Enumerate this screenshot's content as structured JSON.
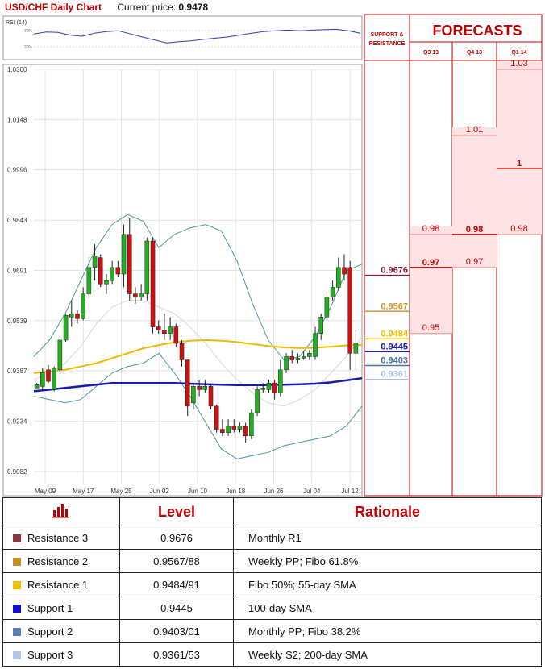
{
  "header": {
    "title": "USD/CHF Daily Chart",
    "price_label": "Current price:",
    "price_value": "0.9478"
  },
  "rsi": {
    "label": "RSI (14)",
    "upper": "70%",
    "lower": "30%",
    "values": [
      58,
      63,
      62,
      55,
      52,
      60,
      64,
      66,
      58,
      50,
      42,
      35,
      38,
      40,
      44,
      47,
      50,
      55,
      60,
      64,
      66,
      68,
      66,
      68,
      69,
      70,
      66,
      60
    ]
  },
  "chart_data": {
    "type": "candlestick",
    "title": "USD/CHF Daily Chart",
    "ylim": [
      0.9082,
      1.03
    ],
    "y_ticks": [
      "1.0300",
      "1.0148",
      "0.9996",
      "0.9843",
      "0.9691",
      "0.9539",
      "0.9387",
      "0.9234",
      "0.9082"
    ],
    "x_ticks": [
      "May 09",
      "May 17",
      "May 25",
      "Jun 02",
      "Jun 10",
      "Jun 18",
      "Jun 26",
      "Jul 04",
      "Jul 12"
    ],
    "candles": [
      [
        0.9335,
        0.9345,
        0.934,
        0.935
      ],
      [
        0.934,
        0.9382,
        0.933,
        0.9395
      ],
      [
        0.939,
        0.9355,
        0.935,
        0.9405
      ],
      [
        0.933,
        0.9395,
        0.9325,
        0.94
      ],
      [
        0.939,
        0.948,
        0.9385,
        0.9485
      ],
      [
        0.948,
        0.9555,
        0.9475,
        0.956
      ],
      [
        0.955,
        0.956,
        0.952,
        0.96
      ],
      [
        0.956,
        0.9545,
        0.953,
        0.957
      ],
      [
        0.9545,
        0.962,
        0.954,
        0.964
      ],
      [
        0.962,
        0.97,
        0.9605,
        0.973
      ],
      [
        0.97,
        0.9735,
        0.966,
        0.977
      ],
      [
        0.973,
        0.965,
        0.964,
        0.974
      ],
      [
        0.965,
        0.966,
        0.962,
        0.968
      ],
      [
        0.966,
        0.97,
        0.965,
        0.972
      ],
      [
        0.97,
        0.968,
        0.967,
        0.972
      ],
      [
        0.968,
        0.98,
        0.964,
        0.983
      ],
      [
        0.98,
        0.962,
        0.96,
        0.985
      ],
      [
        0.962,
        0.961,
        0.959,
        0.964
      ],
      [
        0.961,
        0.962,
        0.96,
        0.965
      ],
      [
        0.962,
        0.978,
        0.96,
        0.979
      ],
      [
        0.978,
        0.952,
        0.95,
        0.979
      ],
      [
        0.952,
        0.951,
        0.95,
        0.954
      ],
      [
        0.951,
        0.95,
        0.948,
        0.956
      ],
      [
        0.95,
        0.952,
        0.948,
        0.955
      ],
      [
        0.952,
        0.947,
        0.946,
        0.953
      ],
      [
        0.947,
        0.942,
        0.94,
        0.948
      ],
      [
        0.942,
        0.928,
        0.925,
        0.942
      ],
      [
        0.929,
        0.934,
        0.927,
        0.935
      ],
      [
        0.934,
        0.933,
        0.931,
        0.936
      ],
      [
        0.933,
        0.934,
        0.932,
        0.936
      ],
      [
        0.934,
        0.928,
        0.927,
        0.9345
      ],
      [
        0.928,
        0.921,
        0.92,
        0.9285
      ],
      [
        0.921,
        0.92,
        0.919,
        0.924
      ],
      [
        0.92,
        0.922,
        0.919,
        0.924
      ],
      [
        0.922,
        0.921,
        0.92,
        0.924
      ],
      [
        0.921,
        0.922,
        0.92,
        0.923
      ],
      [
        0.922,
        0.919,
        0.917,
        0.923
      ],
      [
        0.919,
        0.926,
        0.918,
        0.927
      ],
      [
        0.926,
        0.933,
        0.925,
        0.934
      ],
      [
        0.933,
        0.9335,
        0.932,
        0.935
      ],
      [
        0.933,
        0.935,
        0.932,
        0.936
      ],
      [
        0.935,
        0.932,
        0.93,
        0.936
      ],
      [
        0.932,
        0.939,
        0.931,
        0.942
      ],
      [
        0.939,
        0.943,
        0.938,
        0.944
      ],
      [
        0.943,
        0.942,
        0.941,
        0.945
      ],
      [
        0.942,
        0.9425,
        0.941,
        0.944
      ],
      [
        0.9425,
        0.943,
        0.942,
        0.9445
      ],
      [
        0.943,
        0.944,
        0.942,
        0.945
      ],
      [
        0.943,
        0.95,
        0.942,
        0.952
      ],
      [
        0.95,
        0.955,
        0.948,
        0.956
      ],
      [
        0.955,
        0.961,
        0.954,
        0.963
      ],
      [
        0.961,
        0.964,
        0.96,
        0.966
      ],
      [
        0.964,
        0.97,
        0.963,
        0.973
      ],
      [
        0.97,
        0.968,
        0.966,
        0.974
      ],
      [
        0.97,
        0.944,
        0.939,
        0.972
      ],
      [
        0.944,
        0.947,
        0.939,
        0.951
      ]
    ],
    "sma_55": [
      0.938,
      0.9385,
      0.939,
      0.94,
      0.941,
      0.9425,
      0.944,
      0.9455,
      0.9465,
      0.9473,
      0.9478,
      0.948,
      0.9478,
      0.9474,
      0.9468,
      0.9462,
      0.9458,
      0.9456,
      0.9457,
      0.946,
      0.9464,
      0.9466
    ],
    "sma_100": [
      0.9325,
      0.933,
      0.9335,
      0.934,
      0.9345,
      0.935,
      0.935,
      0.935,
      0.935,
      0.935,
      0.9348,
      0.9346,
      0.9345,
      0.9344,
      0.9344,
      0.9344,
      0.9345,
      0.9346,
      0.9348,
      0.9352,
      0.9358,
      0.9365
    ],
    "bb_upper": [
      0.943,
      0.948,
      0.956,
      0.966,
      0.976,
      0.983,
      0.986,
      0.984,
      0.976,
      0.98,
      0.982,
      0.983,
      0.981,
      0.972,
      0.959,
      0.948,
      0.942,
      0.943,
      0.949,
      0.958,
      0.969,
      0.971
    ],
    "bb_lower": [
      0.931,
      0.93,
      0.929,
      0.93,
      0.934,
      0.938,
      0.94,
      0.941,
      0.944,
      0.938,
      0.931,
      0.923,
      0.915,
      0.912,
      0.913,
      0.914,
      0.916,
      0.917,
      0.918,
      0.919,
      0.922,
      0.928
    ],
    "bb_mid": [
      0.936,
      0.938,
      0.941,
      0.946,
      0.953,
      0.958,
      0.96,
      0.96,
      0.958,
      0.956,
      0.952,
      0.947,
      0.941,
      0.936,
      0.932,
      0.929,
      0.928,
      0.93,
      0.933,
      0.938,
      0.943,
      0.949
    ],
    "price_levels": [
      {
        "value": 0.9676,
        "label": "0.9676",
        "color": "#7b1b2e"
      },
      {
        "value": 0.9567,
        "label": "0.9567",
        "color": "#d09a2a"
      },
      {
        "value": 0.9484,
        "label": "0.9484",
        "color": "#f0c000"
      },
      {
        "value": 0.9445,
        "label": "0.9445",
        "color": "#1c1cbf"
      },
      {
        "value": 0.9403,
        "label": "0.9403",
        "color": "#4a72b0"
      },
      {
        "value": 0.9361,
        "label": "0.9361",
        "color": "#a9c4e0"
      }
    ]
  },
  "forecasts": {
    "title": "FORECASTS",
    "sr_label_line1": "SUPPORT &",
    "sr_label_line2": "RESISTANCE",
    "columns": [
      {
        "label": "Q3 13",
        "high": "0.98",
        "mid": "0.97",
        "low": "0.95",
        "v_high": 0.98,
        "v_mid": 0.97,
        "v_low": 0.95
      },
      {
        "label": "Q4 13",
        "high": "1.01",
        "mid": "0.98",
        "low": "0.97",
        "v_high": 1.01,
        "v_mid": 0.98,
        "v_low": 0.97
      },
      {
        "label": "Q1 14",
        "high": "1.03",
        "mid": "1",
        "low": "0.98",
        "v_high": 1.03,
        "v_mid": 1.0,
        "v_low": 0.98
      }
    ]
  },
  "table": {
    "header_level": "Level",
    "header_rationale": "Rationale",
    "rows": [
      {
        "name": "Resistance 3",
        "level": "0.9676",
        "rationale": "Monthly R1",
        "color": "#8b3a3a"
      },
      {
        "name": "Resistance 2",
        "level": "0.9567/88",
        "rationale": "Weekly PP; Fibo 61.8%",
        "color": "#c0902a"
      },
      {
        "name": "Resistance 1",
        "level": "0.9484/91",
        "rationale": "Fibo 50%; 55-day SMA",
        "color": "#f0c000"
      },
      {
        "name": "Support 1",
        "level": "0.9445",
        "rationale": "100-day SMA",
        "color": "#1010d0"
      },
      {
        "name": "Support 2",
        "level": "0.9403/01",
        "rationale": "Monthly PP; Fibo 38.2%",
        "color": "#5a7fb8"
      },
      {
        "name": "Support 3",
        "level": "0.9361/53",
        "rationale": "Weekly S2; 200-day SMA",
        "color": "#b0c8e4"
      }
    ]
  }
}
